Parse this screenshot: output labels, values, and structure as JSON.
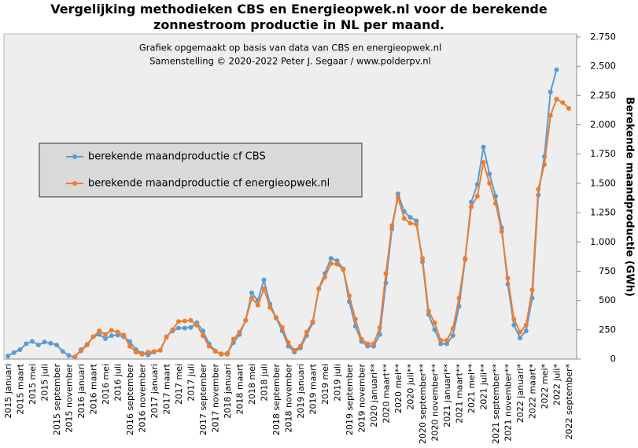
{
  "chart_data": {
    "type": "line",
    "title": "Vergelijking  methodieken  CBS en Energieopwek.nl  voor de berekende zonnestroom productie  in NL  per maand.",
    "annotations": [
      "Grafiek  opgemaakt  op basis  van data van CBS  en energieopwek.nl",
      "Samenstelling  ©  2020-2022  Peter J. Segaar / www.polderpv.nl"
    ],
    "y_axis_label": "Berekende  maandproductie  (GWh)",
    "categories": [
      "2015 januari",
      null,
      "2015 maart",
      null,
      "2015 mei",
      null,
      "2015 juli",
      null,
      "2015 september",
      null,
      "2015 november",
      null,
      "2016 januari",
      null,
      "2016 maart",
      null,
      "2016 mei",
      null,
      "2016 juli",
      null,
      "2016 september",
      null,
      "2016 november",
      null,
      "2017 januari",
      null,
      "2017 maart",
      null,
      "2017 mei",
      null,
      "2017 juli",
      null,
      "2017 september",
      null,
      "2017 november",
      null,
      "2018 januari",
      null,
      "2018 maart",
      null,
      "2018 mei",
      null,
      "2018 juli",
      null,
      "2018 september",
      null,
      "2018 november",
      null,
      "2019 januari",
      null,
      "2019 maart",
      null,
      "2019 mei",
      null,
      "2019 juli",
      null,
      "2019 september",
      null,
      "2019 november",
      null,
      "2020 januari**",
      null,
      "2020 maart**",
      null,
      "2020 mei**",
      null,
      "2020 juli**",
      null,
      "2020 september**",
      null,
      "2020 november**",
      null,
      "2021 januari**",
      null,
      "2021 maart**",
      null,
      "2021 mei**",
      null,
      "2021 juli**",
      null,
      "2021 september**",
      null,
      "2021 november**",
      null,
      "2022 januari*",
      null,
      "2022 maart*",
      null,
      "2022 mei*",
      null,
      "2022 juli*",
      null,
      "2022 september*"
    ],
    "series": [
      {
        "name": "berekende maandproductie cf CBS",
        "color": "#5b9bd5",
        "values": [
          25,
          55,
          80,
          130,
          150,
          120,
          145,
          135,
          120,
          65,
          30,
          15,
          80,
          125,
          190,
          210,
          175,
          200,
          205,
          190,
          150,
          80,
          50,
          35,
          60,
          75,
          190,
          240,
          265,
          265,
          270,
          310,
          240,
          130,
          70,
          40,
          50,
          140,
          210,
          330,
          565,
          500,
          675,
          470,
          350,
          240,
          110,
          60,
          95,
          200,
          310,
          600,
          730,
          860,
          840,
          770,
          490,
          280,
          150,
          110,
          110,
          210,
          650,
          1110,
          1410,
          1260,
          1210,
          1180,
          830,
          380,
          250,
          130,
          130,
          200,
          450,
          850,
          1340,
          1490,
          1810,
          1580,
          1390,
          1120,
          640,
          290,
          180,
          240,
          520,
          1400,
          1730,
          2280,
          2470,
          null,
          null
        ]
      },
      {
        "name": "berekende maandproductie cf energieopwek.nl",
        "color": "#ed7d31",
        "values": [
          null,
          null,
          null,
          null,
          null,
          null,
          null,
          null,
          null,
          null,
          null,
          20,
          70,
          120,
          190,
          240,
          210,
          245,
          230,
          205,
          110,
          60,
          40,
          60,
          65,
          75,
          185,
          250,
          320,
          325,
          330,
          290,
          200,
          110,
          65,
          45,
          40,
          170,
          230,
          330,
          520,
          460,
          600,
          440,
          355,
          270,
          140,
          75,
          110,
          230,
          320,
          600,
          700,
          815,
          810,
          765,
          540,
          340,
          170,
          130,
          130,
          270,
          730,
          1140,
          1380,
          1200,
          1160,
          1150,
          860,
          410,
          310,
          160,
          160,
          260,
          520,
          860,
          1300,
          1390,
          1680,
          1500,
          1330,
          1090,
          690,
          340,
          230,
          290,
          590,
          1450,
          1660,
          2080,
          2220,
          2190,
          2140
        ]
      }
    ],
    "ylim": [
      0,
      2750
    ],
    "yticks": [
      0,
      250,
      500,
      750,
      {
        "value": 1000,
        "label": "1.000"
      },
      {
        "value": 1250,
        "label": "1.250"
      },
      {
        "value": 1500,
        "label": "1.500"
      },
      {
        "value": 1750,
        "label": "1.750"
      },
      {
        "value": 2000,
        "label": "2.000"
      },
      {
        "value": 2250,
        "label": "2.250"
      },
      {
        "value": 2500,
        "label": "2.500"
      },
      {
        "value": 2750,
        "label": "2.750"
      }
    ],
    "grid": false
  }
}
